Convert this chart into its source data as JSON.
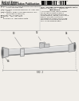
{
  "bg_color": "#f0ede8",
  "barcode_color": "#111111",
  "dark_text": "#222222",
  "mid_text": "#444444",
  "scope_light": "#e8e8e8",
  "scope_mid": "#c8c8c8",
  "scope_dark": "#888888",
  "scope_body": "#d8d8d8",
  "line_color": "#999999",
  "header_line": "#333333"
}
